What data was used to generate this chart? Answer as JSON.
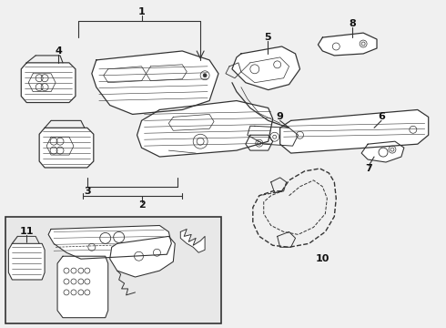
{
  "bg_color": "#f0f0f0",
  "line_color": "#333333",
  "label_color": "#111111",
  "white": "#ffffff",
  "figsize": [
    4.9,
    3.6
  ],
  "dpi": 100
}
